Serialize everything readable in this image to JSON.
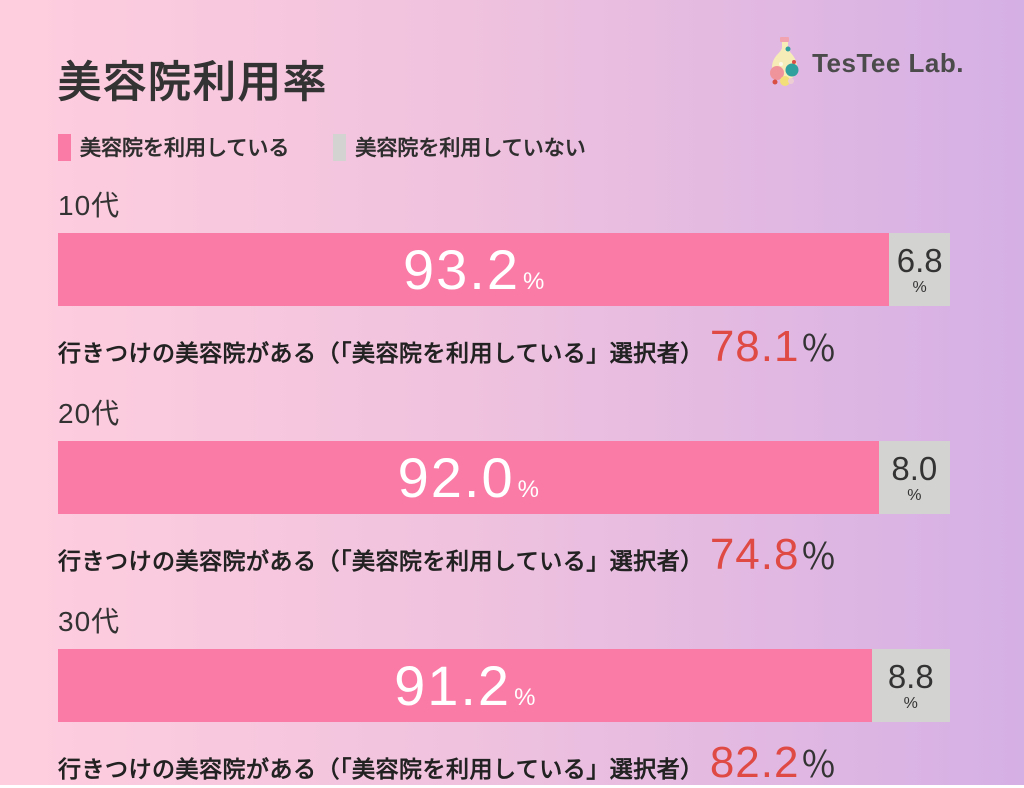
{
  "header": {
    "title": "美容院利用率",
    "logo_text": "TesTee Lab."
  },
  "legend": {
    "using_label": "美容院を利用している",
    "not_using_label": "美容院を利用していない",
    "using_color": "#FA7BA6",
    "not_using_color": "#D3D3D1"
  },
  "units": {
    "bar_percent": "%",
    "gray_percent": "%",
    "caption_percent": "％"
  },
  "captions": {
    "prefix": "行きつけの美容院がある（「美容院を利用している」選択者）"
  },
  "groups": [
    {
      "age_label": "10代",
      "using_pct": "93.2",
      "not_using_pct": "6.8",
      "regular_pct": "78.1"
    },
    {
      "age_label": "20代",
      "using_pct": "92.0",
      "not_using_pct": "8.0",
      "regular_pct": "74.8"
    },
    {
      "age_label": "30代",
      "using_pct": "91.2",
      "not_using_pct": "8.8",
      "regular_pct": "82.2"
    }
  ],
  "chart_data": {
    "type": "bar",
    "orientation": "horizontal",
    "stacked": true,
    "title": "美容院利用率",
    "categories": [
      "10代",
      "20代",
      "30代"
    ],
    "series": [
      {
        "name": "美容院を利用している",
        "color": "#FA7BA6",
        "values": [
          93.2,
          92.0,
          91.2
        ]
      },
      {
        "name": "美容院を利用していない",
        "color": "#D3D3D1",
        "values": [
          6.8,
          8.0,
          8.8
        ]
      }
    ],
    "annotations": {
      "label": "行きつけの美容院がある（「美容院を利用している」選択者）",
      "values": [
        78.1,
        74.8,
        82.2
      ],
      "unit": "％",
      "color": "#E04A44"
    },
    "value_unit": "%",
    "xlim": [
      0,
      100
    ],
    "legend_position": "top",
    "grid": false,
    "background_gradient": [
      "#FFCEDE",
      "#D5B0E5"
    ]
  }
}
